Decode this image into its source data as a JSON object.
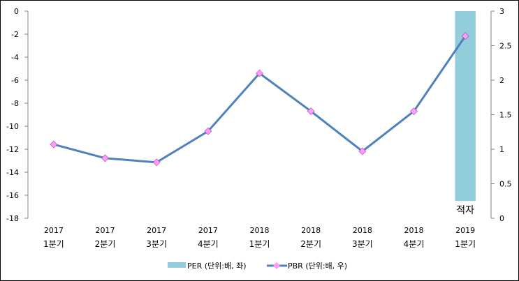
{
  "chart_data": {
    "type": "bar+line",
    "categories": [
      [
        "2017",
        "1분기"
      ],
      [
        "2017",
        "2분기"
      ],
      [
        "2017",
        "3분기"
      ],
      [
        "2017",
        "4분기"
      ],
      [
        "2018",
        "1분기"
      ],
      [
        "2018",
        "2분기"
      ],
      [
        "2018",
        "3분기"
      ],
      [
        "2018",
        "4분기"
      ],
      [
        "2019",
        "1분기"
      ]
    ],
    "left_axis": {
      "ylim": [
        -18,
        0
      ],
      "ticks": [
        "0",
        "-2",
        "-4",
        "-6",
        "-8",
        "-10",
        "-12",
        "-14",
        "-16",
        "-18"
      ]
    },
    "right_axis": {
      "ylim": [
        0,
        3
      ],
      "ticks": [
        "0",
        "0.5",
        "1",
        "1.5",
        "2",
        "2.5",
        "3"
      ]
    },
    "series": [
      {
        "name": "PER (단위:배, 좌)",
        "type": "bar",
        "axis": "left",
        "color": "#92CDDC",
        "values": [
          null,
          null,
          null,
          null,
          null,
          null,
          null,
          null,
          -16.5
        ]
      },
      {
        "name": "PBR (단위:배, 우)",
        "type": "line",
        "axis": "right",
        "color": "#4F81BD",
        "marker_color": "#FF99FF",
        "values": [
          1.07,
          0.87,
          0.81,
          1.26,
          2.1,
          1.55,
          0.97,
          1.55,
          2.64
        ]
      }
    ],
    "annotations": [
      {
        "category_index": 8,
        "text": "적자"
      }
    ],
    "legend": "bottom"
  }
}
